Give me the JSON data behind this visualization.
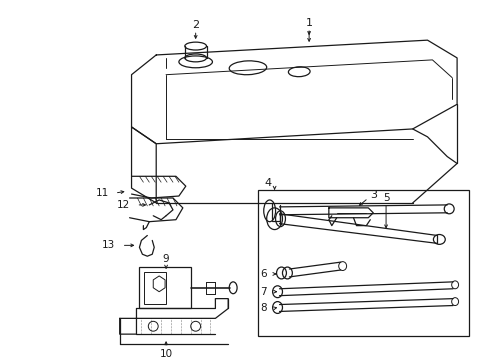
{
  "background": "#ffffff",
  "line_color": "#1a1a1a",
  "fig_width": 4.89,
  "fig_height": 3.6,
  "dpi": 100,
  "label_positions": {
    "1": [
      3.05,
      3.3,
      3.05,
      3.15
    ],
    "2": [
      1.62,
      3.32,
      1.62,
      3.18
    ],
    "3": [
      3.4,
      2.12,
      3.3,
      2.05
    ],
    "4": [
      2.62,
      2.28,
      2.74,
      2.18
    ],
    "5": [
      3.8,
      2.28,
      3.72,
      2.18
    ],
    "6": [
      2.68,
      1.62,
      2.82,
      1.62
    ],
    "7": [
      2.68,
      1.48,
      2.82,
      1.48
    ],
    "8": [
      2.68,
      1.32,
      2.82,
      1.32
    ],
    "9": [
      1.52,
      1.72,
      1.52,
      1.6
    ],
    "10": [
      1.48,
      0.3,
      1.48,
      0.46
    ],
    "11": [
      0.9,
      1.88,
      1.08,
      1.92
    ],
    "12": [
      0.88,
      2.08,
      1.08,
      2.08
    ],
    "13": [
      0.88,
      1.68,
      1.0,
      1.65
    ]
  }
}
